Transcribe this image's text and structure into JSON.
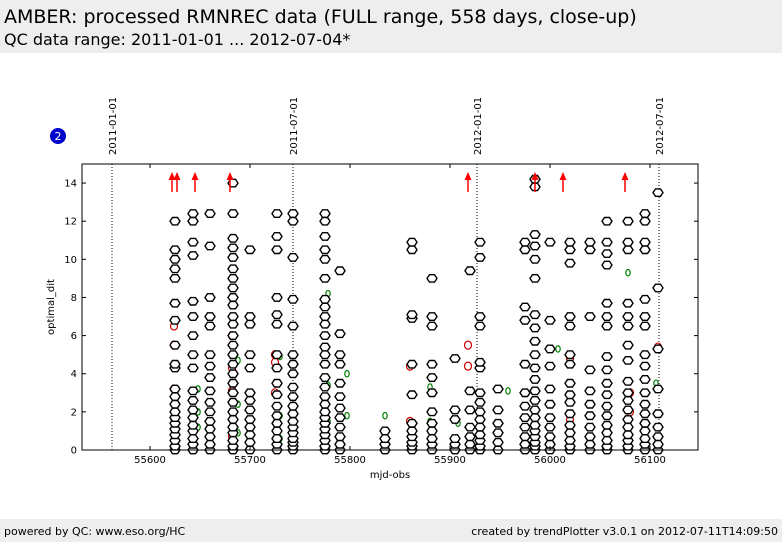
{
  "header": {
    "title": "AMBER: processed RMNREC data (FULL range, 558 days, close-up)",
    "subtitle": "QC data range: 2011-01-01 ... 2012-07-04*"
  },
  "badge": {
    "label": "2"
  },
  "footer": {
    "left": "powered by QC: www.eso.org/HC",
    "right": "created by trendPlotter v3.0.1 on 2012-07-11T14:09:50"
  },
  "colors": {
    "primary_marker": "#000000",
    "secondary_marker": "#cc0000",
    "tertiary_marker": "#008000",
    "arrow": "#ff0000",
    "badge": "#0000cc"
  },
  "chart_data": {
    "type": "scatter",
    "xlabel": "mjd-obs",
    "ylabel": "optimal_dit",
    "xlim": [
      55532,
      56148
    ],
    "ylim": [
      0,
      15
    ],
    "xticks": [
      55600,
      55700,
      55800,
      55900,
      56000,
      56100
    ],
    "yticks": [
      0,
      2,
      4,
      6,
      8,
      10,
      12,
      14
    ],
    "date_markers": [
      {
        "mjd": 55562,
        "label": "2011-01-01"
      },
      {
        "mjd": 55743,
        "label": "2011-07-01"
      },
      {
        "mjd": 55927,
        "label": "2012-01-01"
      },
      {
        "mjd": 56109,
        "label": "2012-07-01"
      }
    ],
    "out_of_range_arrows": [
      55622,
      55627,
      55645,
      55680,
      55918,
      55985,
      56013,
      56075
    ],
    "observation_clusters": [
      {
        "x": 55625,
        "y": [
          0,
          0.2,
          0.5,
          0.8,
          1.1,
          1.4,
          1.7,
          2.0,
          2.4,
          2.8,
          3.2,
          4.3,
          4.5,
          5.5,
          6.8,
          7.7,
          9.0,
          9.5,
          10.0,
          10.5,
          12.0
        ]
      },
      {
        "x": 55643,
        "y": [
          0,
          0.3,
          0.6,
          1.0,
          1.3,
          1.7,
          2.1,
          2.6,
          3.1,
          4.3,
          5.0,
          6.0,
          7.0,
          7.8,
          10.2,
          10.9,
          12.0,
          12.4
        ]
      },
      {
        "x": 55660,
        "y": [
          0,
          0.3,
          0.7,
          1.1,
          1.5,
          2.0,
          2.5,
          3.1,
          3.8,
          4.4,
          5.0,
          6.5,
          7.0,
          8.0,
          10.7,
          12.4
        ]
      },
      {
        "x": 55683,
        "y": [
          0,
          0.2,
          0.5,
          0.9,
          1.2,
          1.6,
          2.0,
          2.5,
          3.0,
          3.5,
          4.0,
          4.5,
          5.0,
          5.5,
          6.0,
          6.6,
          7.0,
          7.6,
          8.0,
          8.5,
          9.0,
          9.5,
          10.1,
          10.6,
          11.1,
          12.4,
          14.0
        ]
      },
      {
        "x": 55700,
        "y": [
          0,
          0.4,
          0.8,
          1.2,
          1.6,
          2.1,
          2.6,
          3.0,
          4.3,
          5.0,
          6.6,
          7.0,
          10.5
        ]
      },
      {
        "x": 55727,
        "y": [
          0,
          0.3,
          0.6,
          1.0,
          1.4,
          1.8,
          2.3,
          2.9,
          3.5,
          4.3,
          5.0,
          6.6,
          7.1,
          8.0,
          10.5,
          11.2,
          12.4
        ]
      },
      {
        "x": 55743,
        "y": [
          0,
          0.2,
          0.4,
          0.6,
          0.9,
          1.2,
          1.5,
          1.9,
          2.3,
          2.8,
          3.3,
          4.0,
          4.5,
          5.0,
          6.5,
          7.9,
          10.1,
          12.0,
          12.4
        ]
      },
      {
        "x": 55775,
        "y": [
          0,
          0.2,
          0.5,
          0.8,
          1.1,
          1.4,
          1.7,
          2.0,
          2.4,
          2.8,
          3.3,
          3.8,
          4.5,
          5.0,
          5.4,
          6.0,
          6.6,
          7.0,
          7.5,
          7.9,
          9.0,
          10.0,
          10.5,
          11.2,
          12.0,
          12.4
        ]
      },
      {
        "x": 55790,
        "y": [
          0,
          0.3,
          0.7,
          1.2,
          1.7,
          2.2,
          2.8,
          3.5,
          4.5,
          5.0,
          6.1,
          9.4
        ]
      },
      {
        "x": 55835,
        "y": [
          0,
          0.3,
          0.6,
          1.0
        ]
      },
      {
        "x": 55862,
        "y": [
          0,
          0.2,
          0.4,
          0.7,
          1.0,
          1.4,
          2.9,
          4.5,
          6.9,
          7.1,
          10.5,
          10.9
        ]
      },
      {
        "x": 55882,
        "y": [
          0,
          0.3,
          0.6,
          1.0,
          1.4,
          2.0,
          3.0,
          3.8,
          4.5,
          6.5,
          7.0,
          9.0
        ]
      },
      {
        "x": 55905,
        "y": [
          0,
          0.3,
          0.6,
          1.6,
          2.1,
          4.8
        ]
      },
      {
        "x": 55920,
        "y": [
          0,
          0.3,
          0.7,
          1.2,
          2.1,
          3.1,
          9.4
        ]
      },
      {
        "x": 55930,
        "y": [
          0,
          0.2,
          0.5,
          0.8,
          1.2,
          1.6,
          2.0,
          2.5,
          3.0,
          4.3,
          4.6,
          6.5,
          7.0,
          10.1,
          10.9
        ]
      },
      {
        "x": 55948,
        "y": [
          0,
          0.4,
          0.9,
          1.4,
          2.1,
          3.2
        ]
      },
      {
        "x": 55975,
        "y": [
          0,
          0.3,
          0.7,
          1.2,
          1.7,
          2.3,
          3.0,
          4.5,
          6.8,
          7.5,
          10.5,
          10.9
        ]
      },
      {
        "x": 55985,
        "y": [
          0,
          0.2,
          0.4,
          0.7,
          1.0,
          1.3,
          1.7,
          2.1,
          2.6,
          3.1,
          3.7,
          4.3,
          5.0,
          5.7,
          6.4,
          7.1,
          9.0,
          10.0,
          10.7,
          11.3,
          13.8,
          14.2
        ]
      },
      {
        "x": 56000,
        "y": [
          0,
          0.3,
          0.7,
          1.2,
          1.7,
          2.4,
          3.2,
          4.4,
          5.3,
          6.8,
          10.9
        ]
      },
      {
        "x": 56020,
        "y": [
          0,
          0.2,
          0.5,
          0.9,
          1.3,
          1.9,
          2.5,
          2.9,
          3.5,
          4.5,
          5.0,
          6.5,
          7.0,
          9.8,
          10.5,
          10.9
        ]
      },
      {
        "x": 56040,
        "y": [
          0,
          0.3,
          0.7,
          1.2,
          1.8,
          2.4,
          3.1,
          4.2,
          7.0,
          10.5,
          10.9
        ]
      },
      {
        "x": 56057,
        "y": [
          0,
          0.2,
          0.5,
          0.9,
          1.3,
          1.8,
          2.3,
          2.9,
          3.5,
          4.2,
          4.9,
          6.5,
          7.0,
          7.7,
          9.7,
          10.3,
          10.9,
          12.0
        ]
      },
      {
        "x": 56078,
        "y": [
          0,
          0.2,
          0.5,
          0.8,
          1.2,
          1.6,
          2.1,
          2.6,
          3.0,
          3.6,
          4.7,
          5.5,
          6.5,
          7.0,
          7.7,
          10.5,
          10.9,
          12.0
        ]
      },
      {
        "x": 56095,
        "y": [
          0,
          0.3,
          0.6,
          1.0,
          1.4,
          1.9,
          2.4,
          3.0,
          3.7,
          4.4,
          5.0,
          6.5,
          7.0,
          7.9,
          10.5,
          10.9,
          12.0,
          12.4
        ]
      },
      {
        "x": 56108,
        "y": [
          0,
          0.3,
          0.7,
          1.2,
          1.9,
          3.2,
          5.3,
          8.5,
          13.5
        ]
      }
    ],
    "secondary_points": [
      {
        "x": 55624,
        "y": [
          5.5,
          6.5,
          3.2,
          1.7
        ]
      },
      {
        "x": 55682,
        "y": [
          3.1,
          4.3,
          6.0,
          0.7
        ]
      },
      {
        "x": 55725,
        "y": [
          5.0,
          4.6,
          3.0
        ]
      },
      {
        "x": 55860,
        "y": [
          4.4,
          1.5
        ]
      },
      {
        "x": 55918,
        "y": [
          5.5,
          4.4
        ]
      },
      {
        "x": 55975,
        "y": [
          6.8,
          3.0
        ]
      },
      {
        "x": 56020,
        "y": [
          4.8,
          1.6
        ]
      },
      {
        "x": 56080,
        "y": [
          2.0,
          3.0
        ]
      },
      {
        "x": 56108,
        "y": [
          5.4
        ]
      }
    ],
    "tertiary_points": [
      {
        "x": 55648,
        "y": [
          2.0,
          1.2,
          3.2
        ]
      },
      {
        "x": 55688,
        "y": [
          4.7,
          0.9,
          2.4
        ]
      },
      {
        "x": 55730,
        "y": [
          0.6,
          1.8,
          4.9
        ]
      },
      {
        "x": 55778,
        "y": [
          8.2,
          3.4,
          1.5
        ]
      },
      {
        "x": 55797,
        "y": [
          4.0,
          1.8
        ]
      },
      {
        "x": 55835,
        "y": [
          1.8
        ]
      },
      {
        "x": 55880,
        "y": [
          1.5,
          3.3
        ]
      },
      {
        "x": 55908,
        "y": [
          1.4
        ]
      },
      {
        "x": 55958,
        "y": [
          3.1
        ]
      },
      {
        "x": 56008,
        "y": [
          5.3
        ]
      },
      {
        "x": 56058,
        "y": [
          4.2,
          1.1
        ]
      },
      {
        "x": 56078,
        "y": [
          9.3,
          1.6
        ]
      },
      {
        "x": 56106,
        "y": [
          3.5
        ]
      }
    ]
  }
}
